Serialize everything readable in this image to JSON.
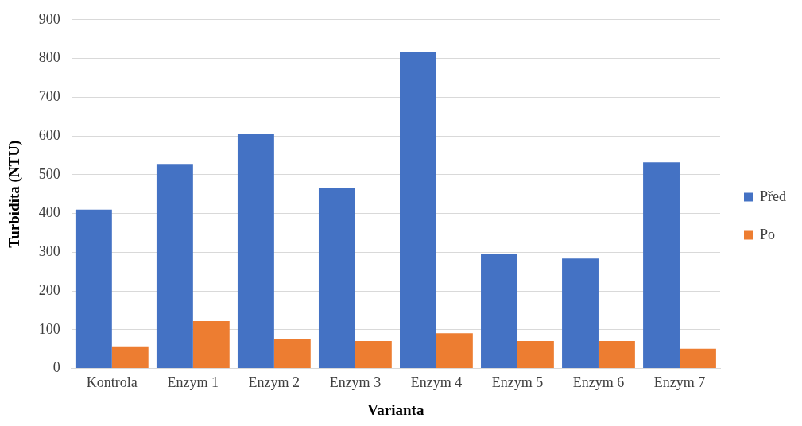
{
  "chart_data": {
    "type": "bar",
    "xlabel": "Varianta",
    "ylabel": "Turbidita (NTU)",
    "categories": [
      "Kontrola",
      "Enzym 1",
      "Enzym 2",
      "Enzym 3",
      "Enzym 4",
      "Enzym 5",
      "Enzym 6",
      "Enzym 7"
    ],
    "series": [
      {
        "name": "Před",
        "color": "#4472c4",
        "values": [
          410,
          528,
          605,
          467,
          817,
          295,
          284,
          532
        ]
      },
      {
        "name": "Po",
        "color": "#ed7d31",
        "values": [
          57,
          122,
          75,
          71,
          91,
          71,
          71,
          51
        ]
      }
    ],
    "ylim": [
      0,
      900
    ],
    "yticks": [
      0,
      100,
      200,
      300,
      400,
      500,
      600,
      700,
      800,
      900
    ],
    "grid": "y",
    "legend": "right"
  }
}
